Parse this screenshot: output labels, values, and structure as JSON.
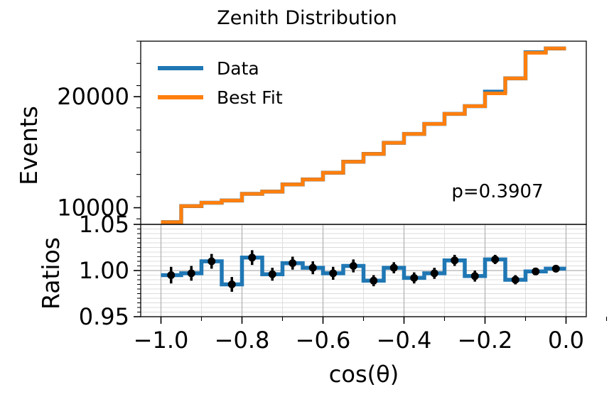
{
  "chart_data": [
    {
      "type": "step",
      "panel": "main",
      "title": "Zenith Distribution",
      "ylabel": "Events",
      "ylim": [
        8500,
        25000
      ],
      "yticks": [
        10000,
        20000
      ],
      "ytick_labels": [
        "10000",
        "20000"
      ],
      "annotation": "p=0.3907",
      "legend": {
        "position": "top-left",
        "entries": [
          "Data",
          "Best Fit"
        ]
      },
      "colors": {
        "Data": "#1f77b4",
        "Best Fit": "#ff7f0e"
      },
      "bin_edges": [
        -1.0,
        -0.95,
        -0.9,
        -0.85,
        -0.8,
        -0.75,
        -0.7,
        -0.65,
        -0.6,
        -0.55,
        -0.5,
        -0.45,
        -0.4,
        -0.35,
        -0.3,
        -0.25,
        -0.2,
        -0.15,
        -0.1,
        -0.05,
        0.0
      ],
      "series": [
        {
          "name": "Data",
          "values": [
            8700,
            10150,
            10450,
            10650,
            11250,
            11450,
            12100,
            12550,
            13150,
            14150,
            14850,
            15850,
            16650,
            17550,
            18450,
            19150,
            20450,
            21650,
            24000,
            24350
          ]
        },
        {
          "name": "Best Fit",
          "values": [
            8700,
            10150,
            10450,
            10650,
            11250,
            11450,
            12100,
            12550,
            13150,
            14150,
            14850,
            15850,
            16650,
            17550,
            18450,
            19150,
            20300,
            21650,
            23950,
            24350
          ]
        }
      ]
    },
    {
      "type": "step",
      "panel": "ratio",
      "xlabel": "cos(θ)",
      "ylabel": "Ratios",
      "ylim": [
        0.95,
        1.05
      ],
      "yticks": [
        0.95,
        1.0,
        1.05
      ],
      "ytick_labels": [
        "0.95",
        "1.00",
        "1.05"
      ],
      "xlim": [
        -1.05,
        0.05
      ],
      "xticks": [
        -1.0,
        -0.8,
        -0.6,
        -0.4,
        -0.2,
        0.0
      ],
      "xtick_labels": [
        "−1.0",
        "−0.8",
        "−0.6",
        "−0.4",
        "−0.2",
        "0.0"
      ],
      "grid": true,
      "step_color": "#1f77b4",
      "bin_edges": [
        -1.0,
        -0.95,
        -0.9,
        -0.85,
        -0.8,
        -0.75,
        -0.7,
        -0.65,
        -0.6,
        -0.55,
        -0.5,
        -0.45,
        -0.4,
        -0.35,
        -0.3,
        -0.25,
        -0.2,
        -0.15,
        -0.1,
        -0.05,
        0.0
      ],
      "x": [
        -0.975,
        -0.925,
        -0.875,
        -0.825,
        -0.775,
        -0.725,
        -0.675,
        -0.625,
        -0.575,
        -0.525,
        -0.475,
        -0.425,
        -0.375,
        -0.325,
        -0.275,
        -0.225,
        -0.175,
        -0.125,
        -0.075,
        -0.025
      ],
      "values": [
        0.995,
        0.997,
        1.01,
        0.985,
        1.014,
        0.996,
        1.008,
        1.003,
        0.997,
        1.005,
        0.989,
        1.003,
        0.992,
        0.997,
        1.011,
        0.994,
        1.012,
        0.99,
        0.999,
        1.002
      ],
      "errors": [
        0.009,
        0.008,
        0.008,
        0.008,
        0.008,
        0.007,
        0.007,
        0.007,
        0.007,
        0.007,
        0.006,
        0.006,
        0.006,
        0.006,
        0.006,
        0.006,
        0.005,
        0.005,
        0.004,
        0.004
      ]
    }
  ]
}
